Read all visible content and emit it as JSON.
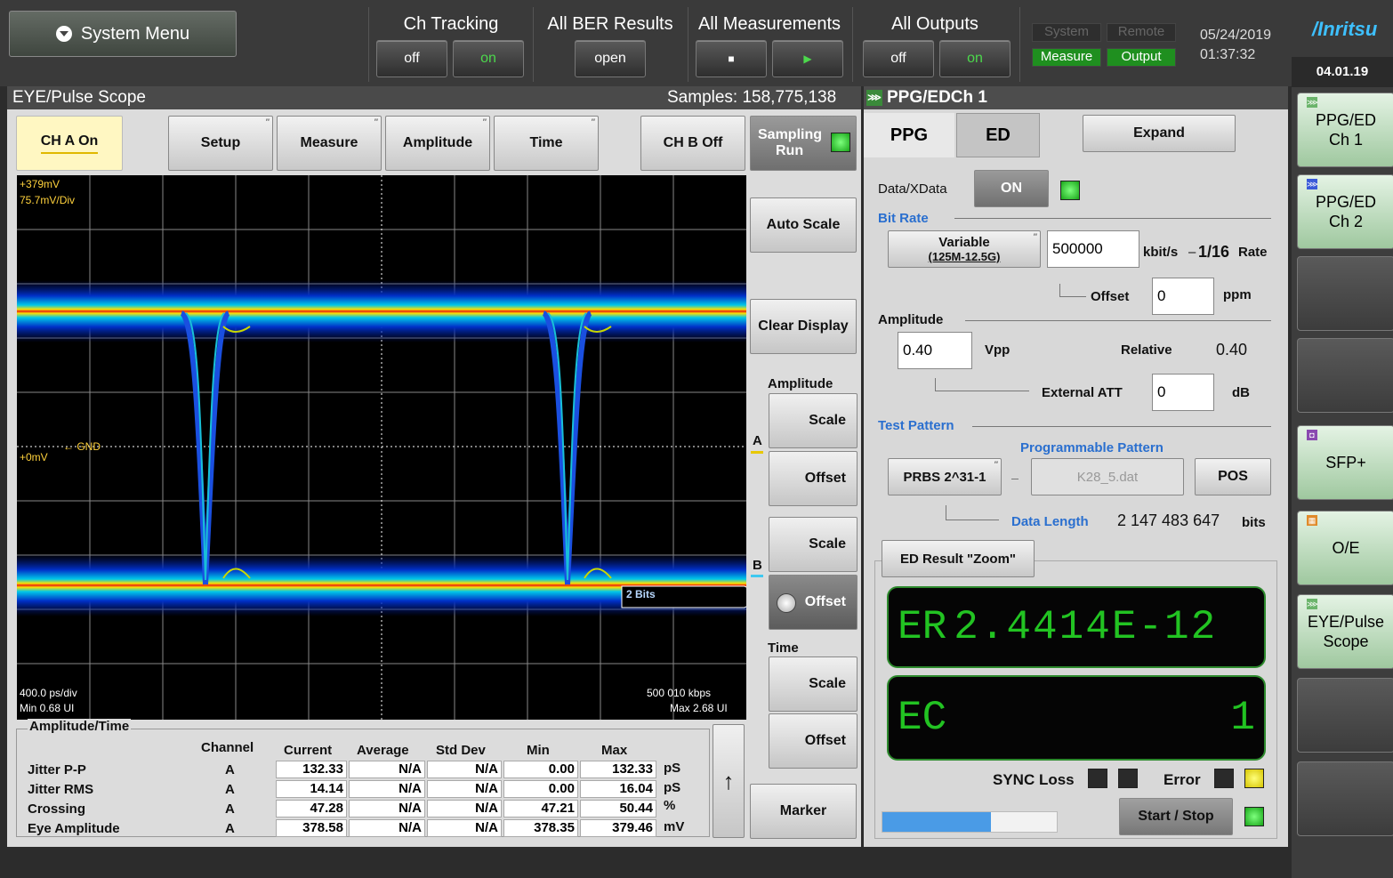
{
  "top": {
    "system_menu": "System Menu",
    "ch_tracking": {
      "title": "Ch Tracking",
      "off": "off",
      "on": "on"
    },
    "all_ber": {
      "title": "All BER Results",
      "open": "open"
    },
    "all_meas": {
      "title": "All Measurements",
      "stop": "■",
      "play": "▶"
    },
    "all_outputs": {
      "title": "All Outputs",
      "off": "off",
      "on": "on"
    },
    "status": {
      "system": "System",
      "remote": "Remote",
      "measure": "Measure",
      "output": "Output"
    },
    "date": "05/24/2019",
    "time": "01:37:32",
    "brand": "/Inritsu",
    "version": "04.01.19"
  },
  "scope": {
    "title": "EYE/Pulse Scope",
    "samples": "Samples: 158,775,138",
    "ch_a": "CH A On",
    "setup": "Setup",
    "measure": "Measure",
    "amplitude": "Amplitude",
    "time": "Time",
    "ch_b": "CH B Off",
    "sampling": "Sampling",
    "run": "Run",
    "y_top": "+379mV",
    "y_div": "75.7mV/Div",
    "gnd": "GND",
    "zero": "+0mV",
    "x_div": "400.0 ps/div",
    "min_ui": "Min 0.68 UI",
    "rate": "500 010 kbps",
    "max_ui": "Max 2.68 UI",
    "bits": "2 Bits"
  },
  "side": {
    "auto_scale": "Auto Scale",
    "clear_display": "Clear Display",
    "amplitude_title": "Amplitude",
    "scale": "Scale",
    "offset": "Offset",
    "a": "A",
    "b": "B",
    "time_title": "Time",
    "marker": "Marker",
    "arrow_up": "↑"
  },
  "table": {
    "title": "Amplitude/Time",
    "headers": [
      "Channel",
      "Current",
      "Average",
      "Std Dev",
      "Min",
      "Max"
    ],
    "rows": [
      {
        "label": "Jitter P-P",
        "ch": "A",
        "cur": "132.33",
        "avg": "N/A",
        "std": "N/A",
        "min": "0.00",
        "max": "132.33",
        "unit": "pS"
      },
      {
        "label": "Jitter RMS",
        "ch": "A",
        "cur": "14.14",
        "avg": "N/A",
        "std": "N/A",
        "min": "0.00",
        "max": "16.04",
        "unit": "pS"
      },
      {
        "label": "Crossing",
        "ch": "A",
        "cur": "47.28",
        "avg": "N/A",
        "std": "N/A",
        "min": "47.21",
        "max": "50.44",
        "unit": "%"
      },
      {
        "label": "Eye Amplitude",
        "ch": "A",
        "cur": "378.58",
        "avg": "N/A",
        "std": "N/A",
        "min": "378.35",
        "max": "379.46",
        "unit": "mV"
      }
    ]
  },
  "ppg": {
    "header": "PPG/EDCh 1",
    "tab_ppg": "PPG",
    "tab_ed": "ED",
    "expand": "Expand",
    "data_xdata": "Data/XData",
    "on": "ON",
    "bit_rate": "Bit Rate",
    "variable": "Variable",
    "variable_range": "(125M-12.5G)",
    "bitrate_value": "500000",
    "kbits": "kbit/s",
    "dash": "–",
    "rate_frac": "1/16",
    "rate_word": "Rate",
    "offset": "Offset",
    "offset_value": "0",
    "ppm": "ppm",
    "amplitude": "Amplitude",
    "amp_value": "0.40",
    "vpp": "Vpp",
    "relative": "Relative",
    "relative_value": "0.40",
    "ext_att": "External ATT",
    "att_value": "0",
    "db": "dB",
    "test_pattern": "Test Pattern",
    "prog_pattern": "Programmable Pattern",
    "prbs": "PRBS 2^31-1",
    "prog_file": "K28_5.dat",
    "pos": "POS",
    "data_length": "Data Length",
    "data_length_value": "2 147 483 647",
    "bits": "bits",
    "ed_zoom": "ED Result \"Zoom\"",
    "er_label": "ER",
    "er_value": "2.4414E-12",
    "ec_label": "EC",
    "ec_value": "1",
    "sync_loss": "SYNC Loss",
    "error": "Error",
    "start_stop": "Start / Stop",
    "progress": 0.62
  },
  "softkeys": {
    "k1a": "PPG/ED",
    "k1b": "Ch 1",
    "k2a": "PPG/ED",
    "k2b": "Ch 2",
    "k5": "SFP+",
    "k6": "O/E",
    "k7a": "EYE/Pulse",
    "k7b": "Scope"
  },
  "colors": {
    "accent_green": "#22c322",
    "label_blue": "#2a6fcf",
    "yellow_label": "#ffd23c"
  }
}
